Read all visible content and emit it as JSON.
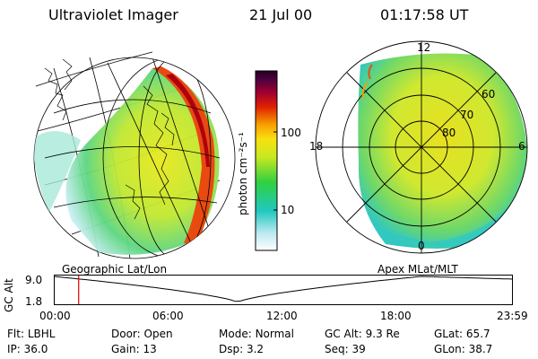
{
  "header": {
    "title": "Ultraviolet Imager",
    "date": "21 Jul 00",
    "time": "01:17:58 UT"
  },
  "colorbar": {
    "label": "photon cm⁻²s⁻¹",
    "ticks": [
      "100",
      "10"
    ]
  },
  "polar_plot": {
    "mlt_labels": {
      "top": "12",
      "left": "18",
      "right": "6",
      "bottom": "0"
    },
    "lat_labels": [
      "60",
      "70",
      "80"
    ]
  },
  "panels": {
    "left_caption": "Geographic Lat/Lon",
    "right_caption": "Apex MLat/MLT"
  },
  "altitude_plot": {
    "ylabel": "GC Alt",
    "ymax": "9.0",
    "ymin": "1.8",
    "xticks": [
      "00:00",
      "06:00",
      "12:00",
      "18:00",
      "23:59"
    ],
    "marker_hour": 1.3
  },
  "info": {
    "row1": [
      {
        "label": "Flt:",
        "value": "LBHL"
      },
      {
        "label": "Door:",
        "value": "Open"
      },
      {
        "label": "Mode:",
        "value": "Normal"
      },
      {
        "label": "GC Alt:",
        "value": "9.3 Re"
      },
      {
        "label": "GLat:",
        "value": "65.7"
      }
    ],
    "row2": [
      {
        "label": "IP:",
        "value": "36.0"
      },
      {
        "label": "Gain:",
        "value": "13"
      },
      {
        "label": "Dsp:",
        "value": "3.2"
      },
      {
        "label": "Seq:",
        "value": "39"
      },
      {
        "label": "GLon:",
        "value": "38.7"
      }
    ]
  },
  "colors": {
    "marker": "#e00000",
    "line": "#000000"
  }
}
